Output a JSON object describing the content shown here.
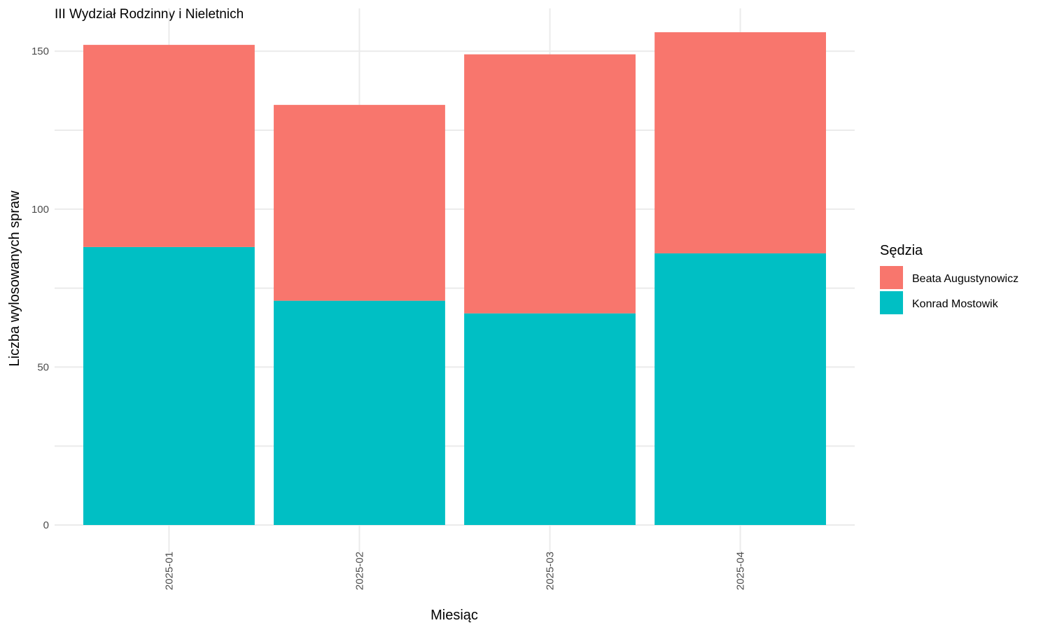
{
  "chart_data": {
    "type": "bar",
    "stacked": true,
    "title": "III Wydział Rodzinny i Nieletnich",
    "xlabel": "Miesiąc",
    "ylabel": "Liczba wylosowanych spraw",
    "categories": [
      "2025-01",
      "2025-02",
      "2025-03",
      "2025-04"
    ],
    "ylim": [
      0,
      160
    ],
    "yticks": [
      0,
      50,
      100,
      150
    ],
    "grid": true,
    "legend": {
      "title": "Sędzia",
      "placement": "right"
    },
    "series": [
      {
        "name": "Konrad Mostowik",
        "color": "#00BFC4",
        "values": [
          88,
          71,
          67,
          86
        ]
      },
      {
        "name": "Beata Augustynowicz",
        "color": "#F8766D",
        "values": [
          64,
          62,
          82,
          70
        ]
      }
    ],
    "legend_order": [
      "Beata Augustynowicz",
      "Konrad Mostowik"
    ]
  }
}
